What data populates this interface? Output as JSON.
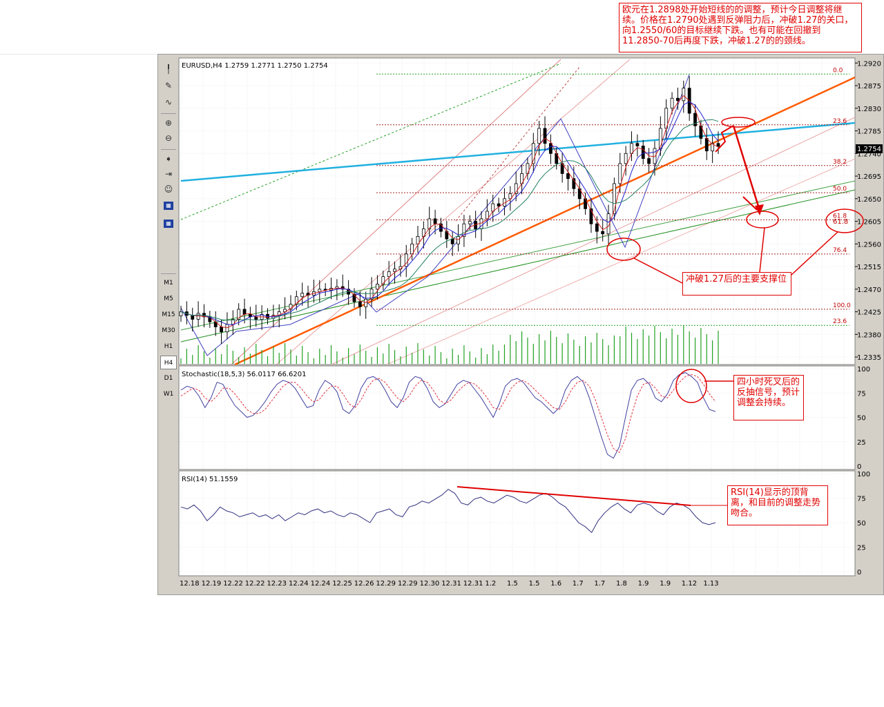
{
  "top_note": "欧元在1.2898处开始短线的的调整，预计今日调整将继续。价格在1.2790处遇到反弹阻力后，冲破1.27的关口，向1.2550/60的目标继续下跌。也有可能在回撤到11.2850-70后再度下跌，冲破1.27的的颈线。",
  "support_note": "冲破1.27后的主要支撑位",
  "stoch_note": "四小时死叉后的反抽信号，预计调整会持续。",
  "rsi_note": "RSI(14)显示的顶背离，和目前的调整走势吻合。",
  "toolbar": {
    "timeframes": [
      "M1",
      "M5",
      "M15",
      "M30",
      "H1",
      "H4",
      "D1",
      "W1"
    ],
    "active_timeframe": "H4",
    "tools": [
      "cursor-icon",
      "crosshair-icon",
      "line-tool-icon",
      "zoom-in-icon",
      "zoom-out-icon",
      "autoscroll-icon",
      "chart-shift-icon",
      "expert-icon",
      "period-icon",
      "period-icon-2"
    ]
  },
  "chart_data": [
    {
      "type": "candlestick",
      "title": "EURUSD,H4  1.2759 1.2771 1.2750 1.2754",
      "symbol": "EURUSD",
      "timeframe": "H4",
      "ohlc_header": [
        "1.2759",
        "1.2771",
        "1.2750",
        "1.2754"
      ],
      "current_price_label": "1.2754",
      "current_price": 1.2754,
      "ylim": [
        1.232,
        1.293
      ],
      "y_ticks": [
        "1.2920",
        "1.2875",
        "1.2830",
        "1.2785",
        "1.2740",
        "1.2695",
        "1.2650",
        "1.2605",
        "1.2560",
        "1.2515",
        "1.2470",
        "1.2425",
        "1.2380",
        "1.2335"
      ],
      "x_tick_labels": [
        "12.18",
        "12.19",
        "12.22",
        "12.22",
        "12.23",
        "12.24",
        "12.24",
        "12.25",
        "12.26",
        "12.29",
        "12.29",
        "12.30",
        "12.31",
        "12.31",
        "1.2",
        "1.5",
        "1.5",
        "1.6",
        "1.7",
        "1.7",
        "1.8",
        "1.9",
        "1.9",
        "1.12",
        "1.13"
      ],
      "closes": [
        1.2425,
        1.2418,
        1.241,
        1.2422,
        1.2415,
        1.2405,
        1.2395,
        1.2385,
        1.24,
        1.241,
        1.243,
        1.242,
        1.2415,
        1.241,
        1.242,
        1.2412,
        1.2418,
        1.2425,
        1.243,
        1.244,
        1.2455,
        1.2462,
        1.2458,
        1.2465,
        1.247,
        1.2468,
        1.2472,
        1.2475,
        1.247,
        1.246,
        1.2445,
        1.2435,
        1.245,
        1.247,
        1.248,
        1.2495,
        1.2505,
        1.251,
        1.2515,
        1.254,
        1.256,
        1.2575,
        1.259,
        1.261,
        1.26,
        1.2585,
        1.257,
        1.256,
        1.2575,
        1.26,
        1.2605,
        1.259,
        1.261,
        1.2625,
        1.264,
        1.2635,
        1.265,
        1.266,
        1.268,
        1.27,
        1.272,
        1.276,
        1.279,
        1.276,
        1.274,
        1.272,
        1.27,
        1.269,
        1.267,
        1.265,
        1.263,
        1.26,
        1.2585,
        1.258,
        1.262,
        1.268,
        1.272,
        1.274,
        1.276,
        1.2755,
        1.273,
        1.272,
        1.275,
        1.279,
        1.283,
        1.285,
        1.2845,
        1.287,
        1.282,
        1.2795,
        1.277,
        1.2745,
        1.276,
        1.2754
      ],
      "fibonacci": [
        {
          "label": "0.0",
          "price": 1.2898
        },
        {
          "label": "23.6",
          "price": 1.2797
        },
        {
          "label": "38.2",
          "price": 1.2716
        },
        {
          "label": "50.0",
          "price": 1.2662
        },
        {
          "label": "61.8",
          "price": 1.2608
        },
        {
          "label": "76.4",
          "price": 1.254
        },
        {
          "label": "100.0",
          "price": 1.243
        },
        {
          "label": "23.6",
          "price": 1.2398
        }
      ],
      "fib_box_label": "61.8"
    },
    {
      "type": "line",
      "title": "Stochastic(18,5,3)  56.0117  66.6201",
      "indicator": "Stochastic(18,5,3)",
      "values_header": [
        "56.0117",
        "66.6201"
      ],
      "ylim": [
        0,
        100
      ],
      "y_ticks": [
        "100",
        "75",
        "50",
        "25",
        "0"
      ],
      "series": [
        {
          "values": [
            78,
            82,
            80,
            72,
            60,
            70,
            86,
            84,
            72,
            62,
            56,
            50,
            52,
            58,
            66,
            76,
            84,
            88,
            86,
            80,
            70,
            60,
            62,
            78,
            88,
            84,
            76,
            58,
            54,
            62,
            80,
            90,
            92,
            88,
            78,
            66,
            60,
            70,
            86,
            92,
            90,
            80,
            66,
            60,
            64,
            74,
            84,
            88,
            86,
            78,
            70,
            60,
            50,
            64,
            82,
            88,
            90,
            86,
            78,
            70,
            66,
            60,
            54,
            60,
            78,
            88,
            92,
            86,
            70,
            50,
            30,
            12,
            8,
            20,
            50,
            78,
            88,
            90,
            84,
            70,
            66,
            74,
            88,
            94,
            96,
            92,
            86,
            70,
            58,
            56
          ]
        },
        {
          "values": [
            72,
            76,
            80,
            78,
            70,
            66,
            72,
            80,
            80,
            74,
            66,
            58,
            54,
            54,
            58,
            66,
            74,
            82,
            86,
            86,
            80,
            72,
            66,
            68,
            76,
            82,
            82,
            74,
            64,
            60,
            68,
            80,
            88,
            90,
            86,
            78,
            70,
            66,
            72,
            82,
            88,
            86,
            78,
            68,
            64,
            68,
            76,
            82,
            86,
            84,
            78,
            70,
            60,
            58,
            68,
            80,
            86,
            88,
            84,
            78,
            72,
            66,
            60,
            58,
            66,
            78,
            86,
            88,
            82,
            68,
            50,
            32,
            18,
            14,
            28,
            52,
            72,
            84,
            86,
            80,
            72,
            70,
            78,
            86,
            92,
            94,
            92,
            84,
            74,
            66
          ]
        }
      ]
    },
    {
      "type": "line",
      "title": "RSI(14)  51.1559",
      "indicator": "RSI(14)",
      "values_header": [
        "51.1559"
      ],
      "ylim": [
        0,
        100
      ],
      "y_ticks": [
        "100",
        "75",
        "50",
        "25",
        "0"
      ],
      "series": [
        {
          "values": [
            66,
            64,
            68,
            62,
            52,
            58,
            66,
            62,
            60,
            56,
            58,
            60,
            56,
            58,
            54,
            58,
            52,
            56,
            60,
            58,
            62,
            64,
            60,
            62,
            58,
            56,
            60,
            58,
            54,
            50,
            60,
            62,
            64,
            58,
            56,
            66,
            68,
            72,
            70,
            74,
            78,
            84,
            80,
            70,
            68,
            74,
            76,
            72,
            70,
            74,
            78,
            76,
            72,
            70,
            74,
            78,
            80,
            76,
            70,
            66,
            58,
            50,
            46,
            40,
            52,
            60,
            66,
            70,
            64,
            60,
            68,
            70,
            68,
            62,
            58,
            66,
            70,
            68,
            64,
            56,
            50,
            48,
            50
          ]
        }
      ]
    }
  ]
}
